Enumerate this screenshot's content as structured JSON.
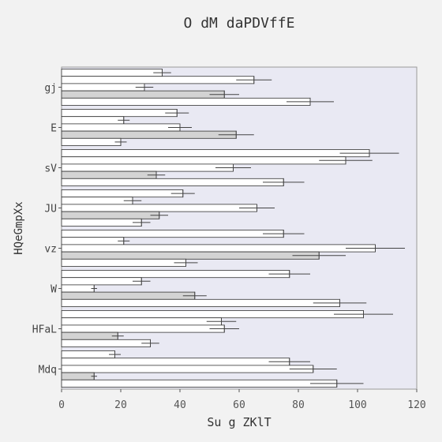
{
  "chart_data": {
    "type": "bar",
    "orientation": "horizontal",
    "title": "O dM  daPDVffE",
    "xlabel": "Su g ZKlT",
    "ylabel": "HQeGmpXx",
    "xlim": [
      0,
      120
    ],
    "x_ticks": [
      "0",
      "20",
      "40",
      "60",
      "80",
      "100",
      "120"
    ],
    "categories": [
      "gj",
      "E",
      "sV",
      "JU",
      "vz",
      "W",
      "HFaL",
      "Mdq"
    ],
    "grid": false,
    "legend": "none",
    "colors": {
      "background": "#f2f2f2",
      "plot_bg": "#e9e9f3",
      "bar_white": "#ffffff",
      "bar_gray": "#d3d3d3",
      "edge": "#333333",
      "error": "#444444"
    },
    "series_fills": [
      "white",
      "white",
      "white",
      "gray",
      "white"
    ],
    "series": [
      {
        "values": [
          34,
          39,
          104,
          41,
          75,
          77,
          102,
          18
        ],
        "errors": [
          3,
          4,
          10,
          4,
          7,
          7,
          10,
          2
        ]
      },
      {
        "values": [
          65,
          21,
          96,
          24,
          21,
          27,
          54,
          77
        ],
        "errors": [
          6,
          2,
          9,
          3,
          2,
          3,
          5,
          7
        ]
      },
      {
        "values": [
          28,
          40,
          58,
          66,
          106,
          11,
          55,
          85
        ],
        "errors": [
          3,
          4,
          6,
          6,
          10,
          1,
          5,
          8
        ]
      },
      {
        "values": [
          55,
          59,
          32,
          33,
          87,
          45,
          19,
          11
        ],
        "errors": [
          5,
          6,
          3,
          3,
          9,
          4,
          2,
          1
        ]
      },
      {
        "values": [
          84,
          20,
          75,
          27,
          42,
          94,
          30,
          93
        ],
        "errors": [
          8,
          2,
          7,
          3,
          4,
          9,
          3,
          9
        ]
      }
    ]
  }
}
